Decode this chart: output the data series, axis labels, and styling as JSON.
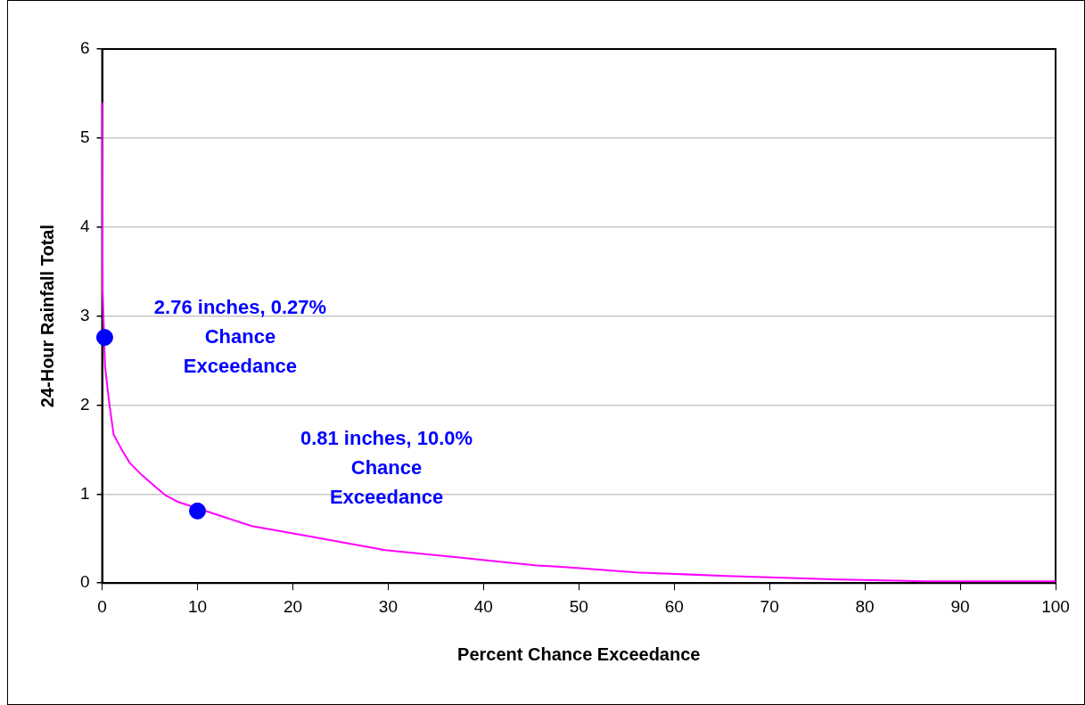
{
  "chart_data": {
    "type": "line",
    "xlabel": "Percent Chance Exceedance",
    "ylabel": "24-Hour Rainfall Total",
    "xlim": [
      0,
      100
    ],
    "xticks": [
      0,
      10,
      20,
      30,
      40,
      50,
      60,
      70,
      80,
      90,
      100
    ],
    "ylim": [
      0,
      6
    ],
    "yticks": [
      0,
      1,
      2,
      3,
      4,
      5,
      6
    ],
    "grid": "y",
    "legend": false,
    "series": [
      {
        "color": "#ff00ff",
        "marker": "none",
        "x": [
          0,
          0.05,
          0.3,
          0.55,
          0.75,
          1.2,
          2,
          2.9,
          4.2,
          5.7,
          6.6,
          8,
          15.7,
          22,
          29.7,
          39,
          45.4,
          48.5,
          49.8,
          56,
          65.5,
          77.4,
          86.2,
          100
        ],
        "values": [
          5.4,
          3.3,
          2.44,
          2.2,
          2.02,
          1.67,
          1.51,
          1.35,
          1.21,
          1.07,
          0.99,
          0.91,
          0.64,
          0.52,
          0.37,
          0.27,
          0.2,
          0.18,
          0.17,
          0.12,
          0.08,
          0.04,
          0.02,
          0.02
        ]
      },
      {
        "type": "scatter",
        "color": "#0000ff",
        "marker": "circle",
        "x": [
          0.27,
          10
        ],
        "values": [
          2.76,
          0.81
        ]
      }
    ],
    "annotations": [
      "2.76 inches, 0.27%\nChance\nExceedance",
      "0.81 inches, 10.0%\nChance\nExceedance"
    ]
  }
}
